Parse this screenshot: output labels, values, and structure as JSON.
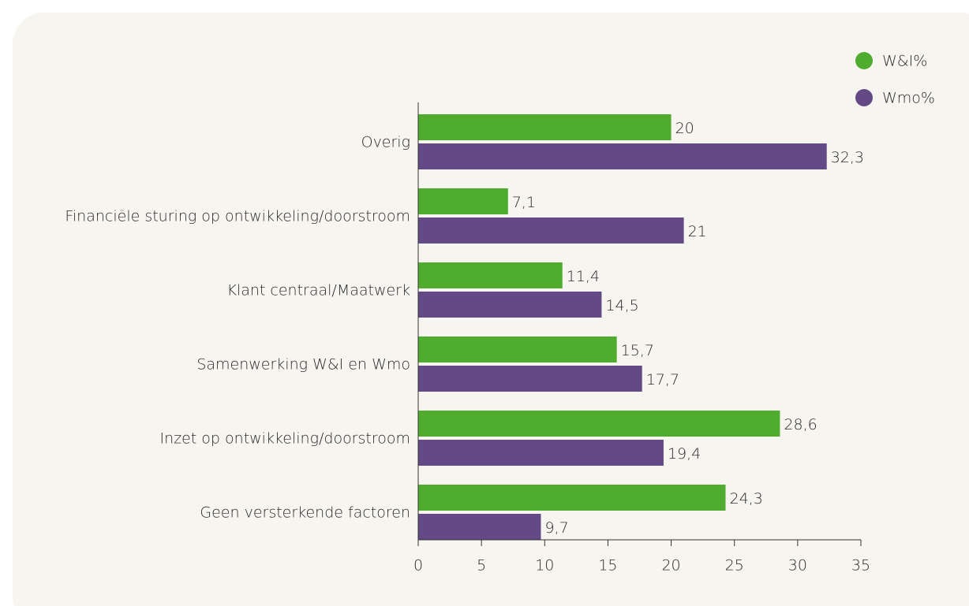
{
  "chart_data": {
    "type": "bar",
    "orientation": "horizontal",
    "categories": [
      "Overig",
      "Financiële sturing op ontwikkeling/doorstroom",
      "Klant centraal/Maatwerk",
      "Samenwerking W&I en Wmo",
      "Inzet op ontwikkeling/doorstroom",
      "Geen versterkende factoren"
    ],
    "series": [
      {
        "name": "W&I%",
        "color": "#4fac2f",
        "values": [
          20,
          7.1,
          11.4,
          15.7,
          28.6,
          24.3
        ],
        "value_labels": [
          "20",
          "7,1",
          "11,4",
          "15,7",
          "28,6",
          "24,3"
        ]
      },
      {
        "name": "Wmo%",
        "color": "#634a87",
        "values": [
          32.3,
          21,
          14.5,
          17.7,
          19.4,
          9.7
        ],
        "value_labels": [
          "32,3",
          "21",
          "14,5",
          "17,7",
          "19,4",
          "9,7"
        ]
      }
    ],
    "xlim": [
      0,
      35
    ],
    "xticks": [
      0,
      5,
      10,
      15,
      20,
      25,
      30,
      35
    ],
    "legend": "top-right"
  }
}
